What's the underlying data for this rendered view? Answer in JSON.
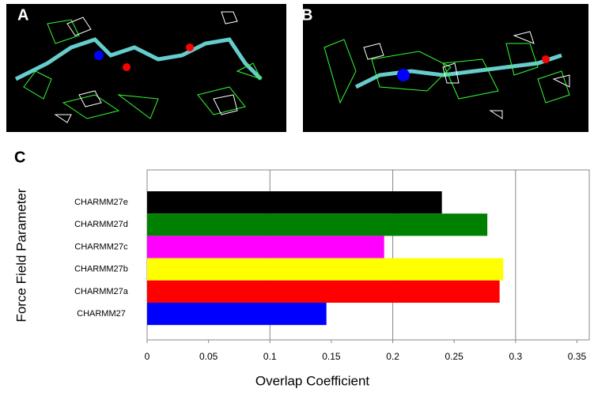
{
  "panels": [
    {
      "label": "A"
    },
    {
      "label": "B"
    }
  ],
  "chart_data": {
    "type": "bar",
    "orientation": "horizontal",
    "panel_label": "C",
    "xlabel": "Overlap Coefficient",
    "ylabel": "Force Field Parameter",
    "categories": [
      "CHARMM27e",
      "CHARMM27d",
      "CHARMM27c",
      "CHARMM27b",
      "CHARMM27a",
      "CHARMM27"
    ],
    "values": [
      0.24,
      0.277,
      0.193,
      0.29,
      0.287,
      0.146
    ],
    "colors": [
      "#000000",
      "#008000",
      "#ff00ff",
      "#ffff00",
      "#ff0000",
      "#0000ff"
    ],
    "xlim": [
      0,
      0.36
    ],
    "xticks": [
      0,
      0.05,
      0.1,
      0.15,
      0.2,
      0.25,
      0.3,
      0.35
    ],
    "grid_lines": [
      0.1,
      0.2,
      0.3
    ]
  }
}
